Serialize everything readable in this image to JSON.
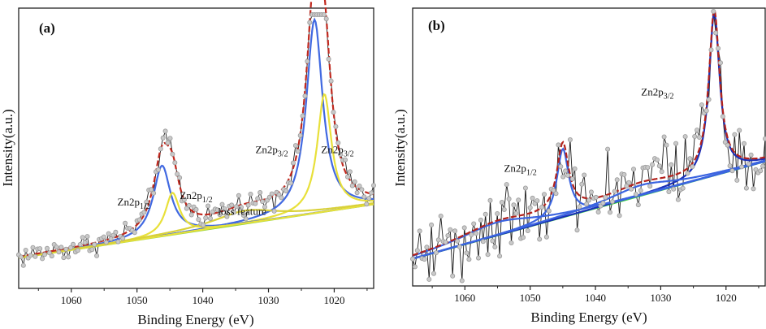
{
  "chart_data": [
    {
      "type": "line",
      "panel_label": "(a)",
      "xlabel": "Binding Energy (eV)",
      "ylabel": "Intensity(a.u.)",
      "xlim": [
        1068,
        1014
      ],
      "ylim": [
        0,
        100
      ],
      "x_ticks": [
        1060,
        1050,
        1040,
        1030,
        1020
      ],
      "annotations": [
        {
          "text": "Zn2p",
          "sub": "3/2",
          "x": 1029.5,
          "y": 47
        },
        {
          "text": "Zn2p",
          "sub": "3/2",
          "x": 1019.5,
          "y": 47
        },
        {
          "text": "Zn2p",
          "sub": "1/2",
          "x": 1050.5,
          "y": 27
        },
        {
          "text": "Zn2p",
          "sub": "1/2",
          "x": 1041.0,
          "y": 29.5
        },
        {
          "text": "loss feature",
          "x": 1034.0,
          "y": 23.5
        }
      ],
      "background": {
        "name": "background",
        "color": "#8fd43a",
        "start": [
          1068,
          7
        ],
        "end": [
          1014,
          27.5
        ]
      },
      "peaks": [
        {
          "name": "Zn2p3/2 main",
          "color": "#4169e1",
          "center": 1023.0,
          "height": 74,
          "width": 1.5
        },
        {
          "name": "Zn2p3/2 satellite",
          "color": "#e8e03a",
          "center": 1021.5,
          "height": 45,
          "width": 1.3
        },
        {
          "name": "Zn2p1/2 main",
          "color": "#4169e1",
          "center": 1046.2,
          "height": 27,
          "width": 1.6
        },
        {
          "name": "Zn2p1/2 satellite",
          "color": "#e8e03a",
          "center": 1044.6,
          "height": 16,
          "width": 1.3
        },
        {
          "name": "loss feature",
          "color": "#d9d13a",
          "center": 1033.5,
          "height": 5,
          "width": 6
        }
      ],
      "envelope_color": "#c0281e",
      "data_color": "#9a9a9a",
      "noise": 2.2
    },
    {
      "type": "line",
      "panel_label": "(b)",
      "xlabel": "Binding Energy (eV)",
      "ylabel": "Intensity(a.u.)",
      "xlim": [
        1068,
        1014
      ],
      "ylim": [
        0,
        100
      ],
      "x_ticks": [
        1060,
        1050,
        1040,
        1030,
        1020
      ],
      "annotations": [
        {
          "text": "Zn2p",
          "sub": "3/2",
          "x": 1030.5,
          "y": 68
        },
        {
          "text": "Zn2p",
          "sub": "1/2",
          "x": 1051.5,
          "y": 39
        }
      ],
      "background": {
        "name": "background",
        "color": "#3fd93f",
        "start": [
          1068,
          6
        ],
        "end": [
          1014,
          43
        ]
      },
      "peaks": [
        {
          "name": "Zn2p3/2",
          "color": "#1a2fb8",
          "center": 1021.8,
          "height": 62,
          "width": 1.0
        },
        {
          "name": "Zn2p1/2",
          "color": "#3b64e0",
          "center": 1045.0,
          "height": 26,
          "width": 1.1
        },
        {
          "name": "shake-up 1",
          "color": "#3b64e0",
          "center": 1033.0,
          "height": 4,
          "width": 6
        },
        {
          "name": "shake-up 2",
          "color": "#3b64e0",
          "center": 1055.0,
          "height": 5,
          "width": 7
        }
      ],
      "envelope_color": "#b3221c",
      "data_color": "#9a9a9a",
      "noise": 7.5
    }
  ]
}
